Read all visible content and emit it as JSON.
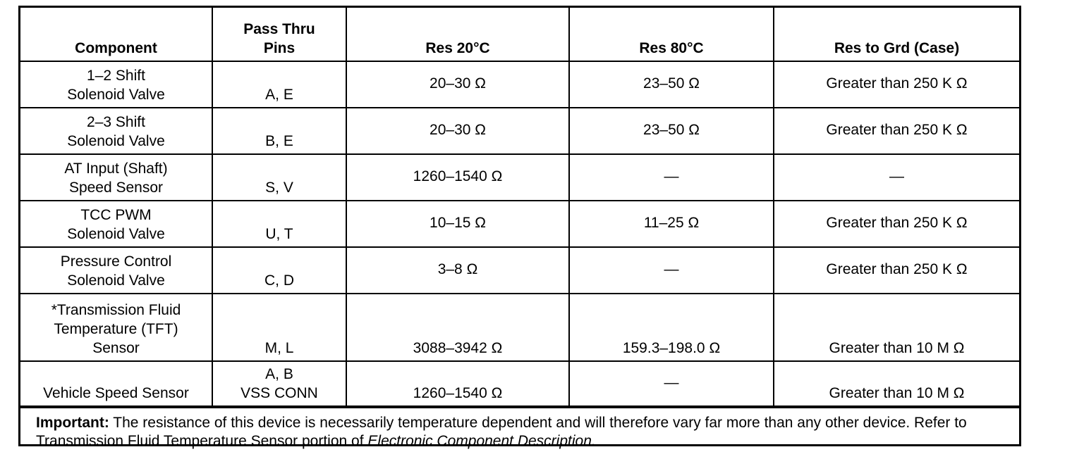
{
  "table": {
    "headers": {
      "component": "Component",
      "pins_line1": "Pass Thru",
      "pins_line2": "Pins",
      "res20": "Res 20°C",
      "res80": "Res 80°C",
      "res_ground": "Res to Grd (Case)"
    },
    "rows": [
      {
        "component_line1": "1–2 Shift",
        "component_line2": "Solenoid Valve",
        "component_line3": "",
        "pins_line1": "",
        "pins_line2": "A, E",
        "res20": "20–30 Ω",
        "res80": "23–50 Ω",
        "res_ground": "Greater than 250 K Ω"
      },
      {
        "component_line1": "2–3 Shift",
        "component_line2": "Solenoid Valve",
        "component_line3": "",
        "pins_line1": "",
        "pins_line2": "B, E",
        "res20": "20–30 Ω",
        "res80": "23–50 Ω",
        "res_ground": "Greater than 250 K Ω"
      },
      {
        "component_line1": "AT Input (Shaft)",
        "component_line2": "Speed Sensor",
        "component_line3": "",
        "pins_line1": "",
        "pins_line2": "S, V",
        "res20": "1260–1540 Ω",
        "res80": "—",
        "res_ground": "—"
      },
      {
        "component_line1": "TCC PWM",
        "component_line2": "Solenoid Valve",
        "component_line3": "",
        "pins_line1": "",
        "pins_line2": "U, T",
        "res20": "10–15 Ω",
        "res80": "11–25 Ω",
        "res_ground": "Greater than 250 K Ω"
      },
      {
        "component_line1": "Pressure Control",
        "component_line2": "Solenoid Valve",
        "component_line3": "",
        "pins_line1": "",
        "pins_line2": "C, D",
        "res20": "3–8 Ω",
        "res80": "—",
        "res_ground": "Greater than 250 K Ω"
      },
      {
        "component_line1": "*Transmission Fluid",
        "component_line2": "Temperature (TFT)",
        "component_line3": "Sensor",
        "pins_line1": "",
        "pins_line2": "M, L",
        "res20": "3088–3942 Ω",
        "res80": "159.3–198.0 Ω",
        "res_ground": "Greater than 10 M Ω"
      },
      {
        "component_line1": "",
        "component_line2": "Vehicle Speed Sensor",
        "component_line3": "",
        "pins_line1": "A, B",
        "pins_line2": "VSS CONN",
        "res20": "1260–1540 Ω",
        "res80": "—",
        "res_ground": "Greater than 10 M Ω"
      }
    ]
  },
  "note": {
    "label": "Important:",
    "text": " The resistance of this device is necessarily temperature dependent and will therefore vary far more than any other device. Refer to Transmission Fluid Temperature Sensor portion of ",
    "reference": "Electronic Component Description."
  }
}
